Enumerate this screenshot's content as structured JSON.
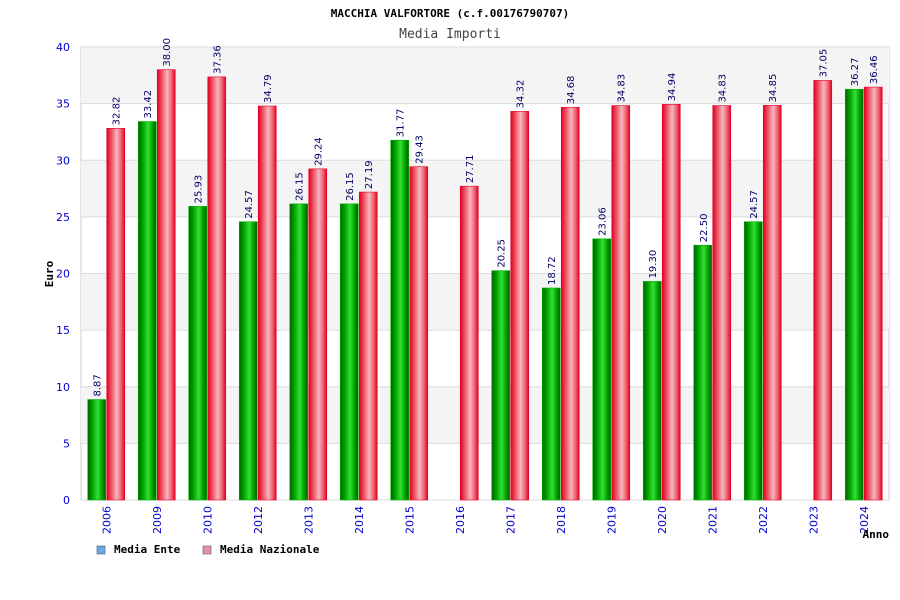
{
  "chart_data": {
    "type": "bar",
    "title": "MACCHIA VALFORTORE (c.f.00176790707)",
    "subtitle": "Media Importi",
    "xlabel": "Anno",
    "ylabel": "Euro",
    "ylim": [
      0,
      40
    ],
    "yticks": [
      0,
      5,
      10,
      15,
      20,
      25,
      30,
      35,
      40
    ],
    "grid": true,
    "legend_position": "bottom-left",
    "categories": [
      "2006",
      "2009",
      "2010",
      "2012",
      "2013",
      "2014",
      "2015",
      "2016",
      "2017",
      "2018",
      "2019",
      "2020",
      "2021",
      "2022",
      "2023",
      "2024"
    ],
    "series": [
      {
        "name": "Media Ente",
        "legend_color": "#6aa9e9",
        "bar_color": "#00b000",
        "values": [
          8.87,
          33.42,
          25.93,
          24.57,
          26.15,
          26.15,
          31.77,
          null,
          20.25,
          18.72,
          23.06,
          19.3,
          22.5,
          24.57,
          null,
          36.27
        ],
        "labels": [
          "8.87",
          "33.42",
          "25.93",
          "24.57",
          "26.15",
          "26.15",
          "31.77",
          null,
          "20.25",
          "18.72",
          "23.06",
          "19.30",
          "22.50",
          "24.57",
          null,
          "36.27"
        ]
      },
      {
        "name": "Media Nazionale",
        "legend_color": "#e58fb0",
        "bar_color": "#e8002a",
        "values": [
          32.82,
          38.0,
          37.36,
          34.79,
          29.24,
          27.19,
          29.43,
          27.71,
          34.32,
          34.68,
          34.83,
          34.94,
          34.83,
          34.85,
          37.05,
          36.46
        ],
        "labels": [
          "32.82",
          "38.00",
          "37.36",
          "34.79",
          "29.24",
          "27.19",
          "29.43",
          "27.71",
          "34.32",
          "34.68",
          "34.83",
          "34.94",
          "34.83",
          "34.85",
          "37.05",
          "36.46"
        ]
      }
    ],
    "colors": {
      "axis_text": "#0000cc",
      "label_text": "#000066",
      "band": "#f4f4f4",
      "gridline": "#dcdcdc"
    }
  }
}
